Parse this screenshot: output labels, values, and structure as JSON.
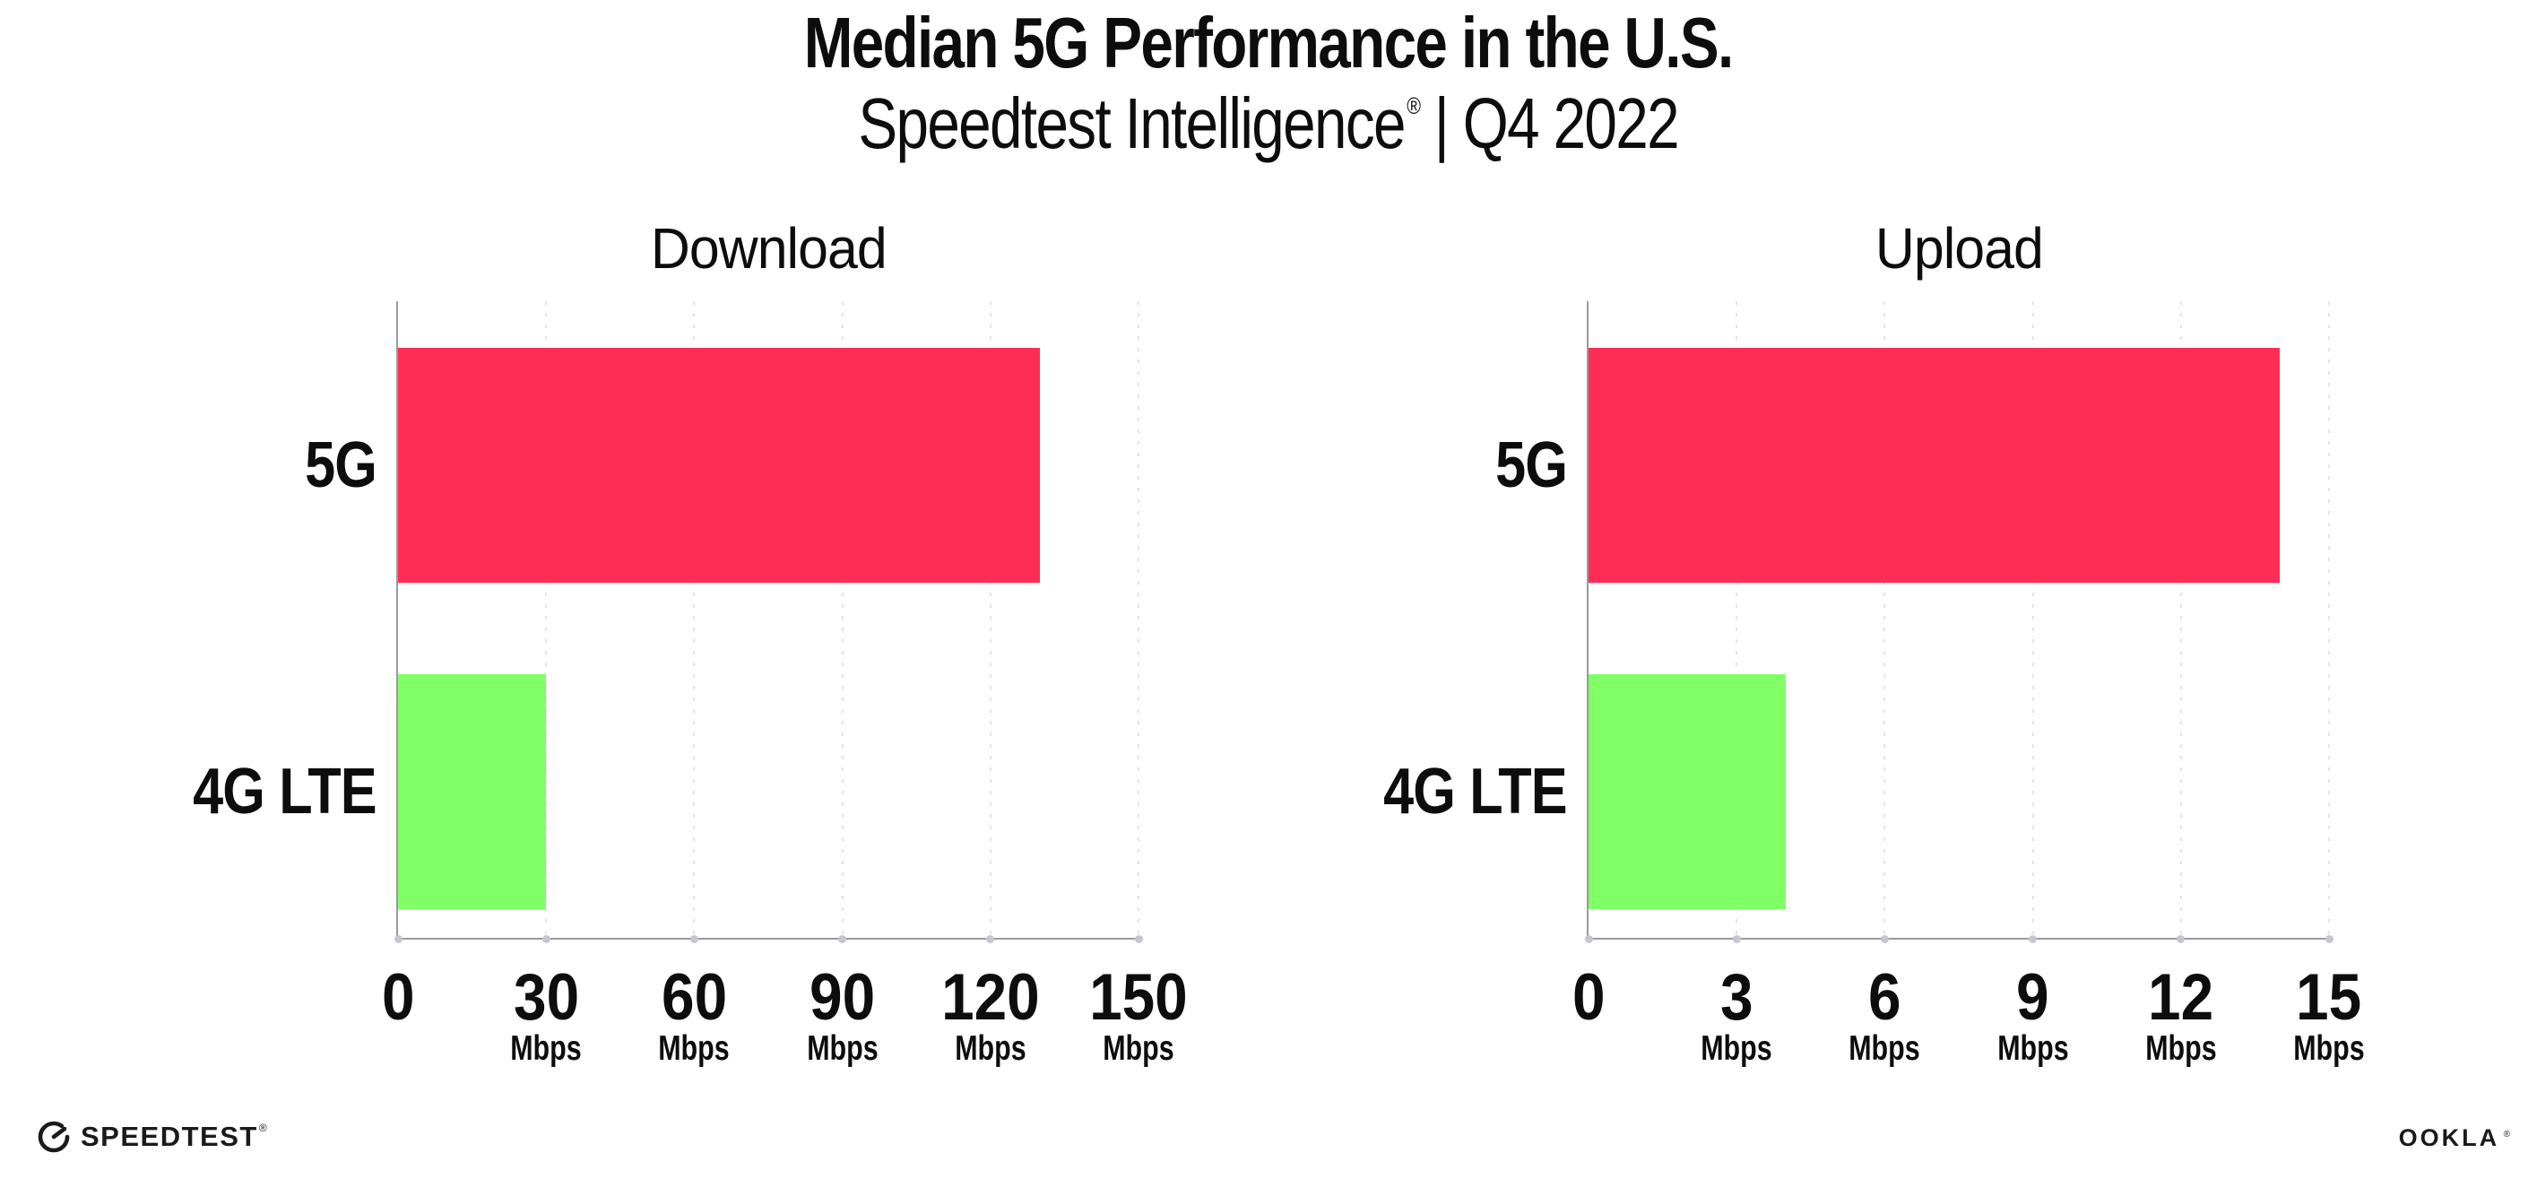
{
  "header": {
    "title": "Median 5G Performance in the U.S.",
    "subtitle_brand": "Speedtest Intelligence",
    "subtitle_reg": "®",
    "subtitle_rest": "| Q4 2022"
  },
  "colors": {
    "bar_5g": "#FF2D55",
    "bar_4g_lte": "#80FF66",
    "axis": "#9a9a9a",
    "gridline": "#e3e3ee",
    "text": "#0d0d0d"
  },
  "chart_data": [
    {
      "type": "bar",
      "orientation": "horizontal",
      "title": "Download",
      "categories": [
        "5G",
        "4G LTE"
      ],
      "values": [
        130,
        30
      ],
      "unit": "Mbps",
      "xlim": [
        0,
        150
      ],
      "xticks": [
        0,
        30,
        60,
        90,
        120,
        150
      ],
      "bar_colors": [
        "#FF2D55",
        "#80FF66"
      ],
      "grid": "vertical-dotted",
      "legend": "none"
    },
    {
      "type": "bar",
      "orientation": "horizontal",
      "title": "Upload",
      "categories": [
        "5G",
        "4G LTE"
      ],
      "values": [
        14,
        4
      ],
      "unit": "Mbps",
      "xlim": [
        0,
        15
      ],
      "xticks": [
        0,
        3,
        6,
        9,
        12,
        15
      ],
      "bar_colors": [
        "#FF2D55",
        "#80FF66"
      ],
      "grid": "vertical-dotted",
      "legend": "none"
    }
  ],
  "footer": {
    "speedtest_label": "SPEEDTEST",
    "speedtest_reg": "®",
    "ookla_label": "OOKLA",
    "ookla_reg": "®"
  }
}
